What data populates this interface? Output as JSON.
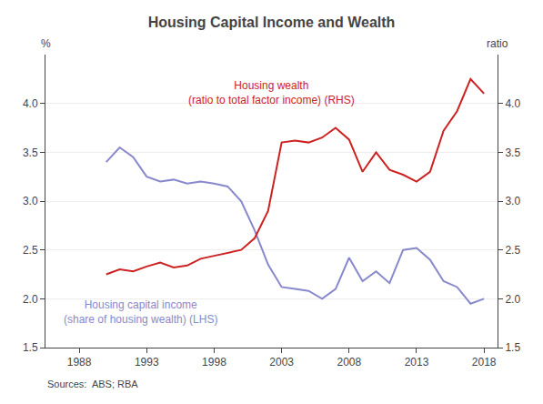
{
  "chart_data": {
    "type": "line",
    "title": "Housing Capital Income and Wealth",
    "y_label": "%",
    "y2_label": "ratio",
    "source": "Sources:  ABS; RBA",
    "x": [
      1990,
      1991,
      1992,
      1993,
      1994,
      1995,
      1996,
      1997,
      1998,
      1999,
      2000,
      2001,
      2002,
      2003,
      2004,
      2005,
      2006,
      2007,
      2008,
      2009,
      2010,
      2011,
      2012,
      2013,
      2014,
      2015,
      2016,
      2017,
      2018
    ],
    "series": [
      {
        "axis": "y2",
        "color": "#cc2222",
        "values": [
          2.25,
          2.3,
          2.28,
          2.33,
          2.37,
          2.32,
          2.34,
          2.41,
          2.44,
          2.47,
          2.5,
          2.62,
          2.9,
          3.6,
          3.62,
          3.6,
          3.65,
          3.75,
          3.63,
          3.3,
          3.5,
          3.32,
          3.27,
          3.2,
          3.3,
          3.72,
          3.92,
          4.25,
          4.1
        ]
      },
      {
        "axis": "y",
        "color": "#8888cc",
        "values": [
          3.4,
          3.55,
          3.45,
          3.25,
          3.2,
          3.22,
          3.18,
          3.2,
          3.18,
          3.15,
          3.0,
          2.7,
          2.35,
          2.12,
          2.1,
          2.08,
          2.0,
          2.1,
          2.42,
          2.18,
          2.28,
          2.16,
          2.5,
          2.52,
          2.4,
          2.18,
          2.12,
          1.95,
          2.0
        ]
      }
    ],
    "annotations": [
      {
        "text": [
          "Housing wealth",
          "(ratio to total factor income) (RHS)"
        ],
        "color": "#cc2222"
      },
      {
        "text": [
          "Housing capital income",
          "(share of housing wealth) (LHS)"
        ],
        "color": "#8888cc"
      }
    ],
    "xlim": [
      1985.5,
      2019.0
    ],
    "xticks": [
      1988,
      1993,
      1998,
      2003,
      2008,
      2013,
      2018
    ],
    "ylim": [
      1.5,
      4.5
    ],
    "yticks": [
      1.5,
      {
        "value": 2.0,
        "label": "2.0"
      },
      2.5,
      {
        "value": 3.0,
        "label": "3.0"
      },
      3.5,
      {
        "value": 4.0,
        "label": "4.0"
      }
    ],
    "y2lim": [
      1.5,
      4.5
    ],
    "y2ticks": [
      1.5,
      {
        "value": 2.0,
        "label": "2.0"
      },
      2.5,
      {
        "value": 3.0,
        "label": "3.0"
      },
      3.5,
      {
        "value": 4.0,
        "label": "4.0"
      }
    ],
    "grid": true
  }
}
